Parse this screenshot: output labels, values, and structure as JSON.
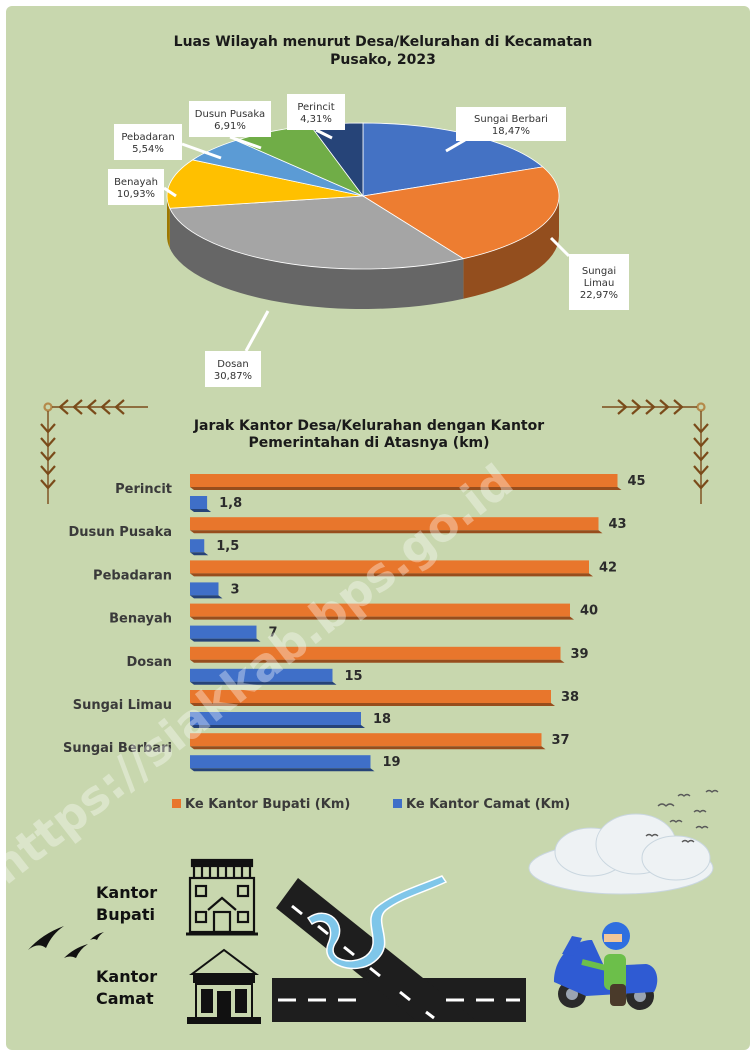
{
  "colors": {
    "background": "#c8d7ae",
    "bupati_bar": "#e8762c",
    "camat_bar": "#3f6fc8"
  },
  "watermark": "https://siakkab.bps.go.id",
  "chart_data": [
    {
      "type": "pie",
      "title_line1": "Luas Wilayah menurut Desa/Kelurahan di Kecamatan",
      "title_line2": "Pusako, 2023",
      "slices": [
        {
          "name": "Sungai Berbari",
          "label": "18,47%",
          "value": 18.47,
          "color": "#4472c4"
        },
        {
          "name": "Sungai Limau",
          "label": "22,97%",
          "value": 22.97,
          "color": "#ed7d31"
        },
        {
          "name": "Dosan",
          "label": "30,87%",
          "value": 30.87,
          "color": "#a5a5a5"
        },
        {
          "name": "Benayah",
          "label": "10,93%",
          "value": 10.93,
          "color": "#ffc000"
        },
        {
          "name": "Pebadaran",
          "label": "5,54%",
          "value": 5.54,
          "color": "#5b9bd5"
        },
        {
          "name": "Dusun Pusaka",
          "label": "6,91%",
          "value": 6.91,
          "color": "#70ad47"
        },
        {
          "name": "Perincit",
          "label": "4,31%",
          "value": 4.31,
          "color": "#264478"
        }
      ]
    },
    {
      "type": "bar",
      "orientation": "horizontal",
      "title_line1": "Jarak Kantor Desa/Kelurahan dengan Kantor",
      "title_line2": "Pemerintahan di Atasnya (km)",
      "categories": [
        "Perincit",
        "Dusun Pusaka",
        "Pebadaran",
        "Benayah",
        "Dosan",
        "Sungai Limau",
        "Sungai Berbari"
      ],
      "series": [
        {
          "name": "Ke Kantor Bupati (Km)",
          "values": [
            45,
            43,
            42,
            40,
            39,
            38,
            37
          ],
          "labels": [
            "45",
            "43",
            "42",
            "40",
            "39",
            "38",
            "37"
          ]
        },
        {
          "name": "Ke Kantor Camat (Km)",
          "values": [
            1.8,
            1.5,
            3,
            7,
            15,
            18,
            19
          ],
          "labels": [
            "1,8",
            "1,5",
            "3",
            "7",
            "15",
            "18",
            "19"
          ]
        }
      ],
      "legend": "bottom"
    }
  ],
  "illustration": {
    "label_bupati_line1": "Kantor",
    "label_bupati_line2": "Bupati",
    "label_camat_line1": "Kantor",
    "label_camat_line2": "Camat",
    "icons": [
      "bupati-building-icon",
      "camat-building-icon",
      "road-icon",
      "river-icon",
      "cloud-icon",
      "birds-icon",
      "scooter-rider-icon",
      "ornament-arrow-icon"
    ]
  }
}
